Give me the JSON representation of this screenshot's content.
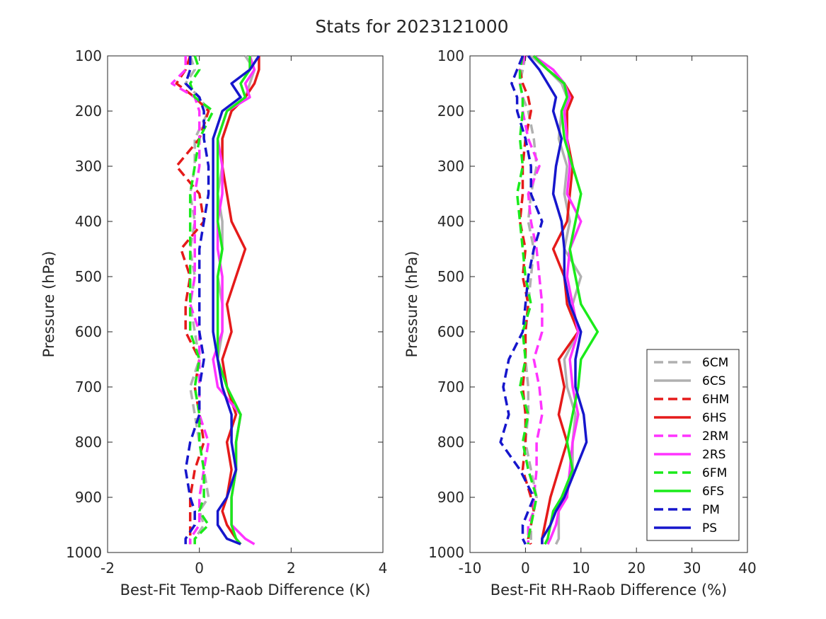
{
  "figure": {
    "title": "Stats for 2023121000"
  },
  "colors": {
    "6C": "#b0b0b0",
    "6H": "#e51a1a",
    "2R": "#ff33ff",
    "6F": "#1aeb1a",
    "P": "#1616cc"
  },
  "legend": {
    "placement": "bottom-right of right panel",
    "entries": [
      {
        "label": "6CM",
        "color": "#b0b0b0",
        "dashed": true
      },
      {
        "label": "6CS",
        "color": "#b0b0b0",
        "dashed": false
      },
      {
        "label": "6HM",
        "color": "#e51a1a",
        "dashed": true
      },
      {
        "label": "6HS",
        "color": "#e51a1a",
        "dashed": false
      },
      {
        "label": "2RM",
        "color": "#ff33ff",
        "dashed": true
      },
      {
        "label": "2RS",
        "color": "#ff33ff",
        "dashed": false
      },
      {
        "label": "6FM",
        "color": "#1aeb1a",
        "dashed": true
      },
      {
        "label": "6FS",
        "color": "#1aeb1a",
        "dashed": false
      },
      {
        "label": "PM",
        "color": "#1616cc",
        "dashed": true
      },
      {
        "label": "PS",
        "color": "#1616cc",
        "dashed": false
      }
    ]
  },
  "chart_data": [
    {
      "type": "line",
      "xlabel": "Best-Fit Temp-Raob Difference (K)",
      "ylabel": "Pressure (hPa)",
      "xlim": [
        -2,
        4
      ],
      "ylim": [
        100,
        1000
      ],
      "y_reversed": true,
      "xticks": [
        "-2",
        "0",
        "2",
        "4"
      ],
      "yticks": [
        "100",
        "200",
        "300",
        "400",
        "500",
        "600",
        "700",
        "800",
        "900",
        "1000"
      ],
      "grid": false,
      "pressure": [
        100,
        125,
        150,
        175,
        200,
        250,
        300,
        350,
        400,
        450,
        500,
        550,
        600,
        650,
        700,
        750,
        800,
        850,
        900,
        925,
        950,
        975,
        985
      ],
      "series": [
        {
          "name": "6CM",
          "values": [
            -0.2,
            -0.1,
            -0.3,
            0.0,
            0.2,
            -0.1,
            -0.1,
            -0.2,
            -0.1,
            -0.2,
            -0.1,
            -0.2,
            -0.1,
            0.0,
            -0.2,
            -0.1,
            0.0,
            0.1,
            0.2,
            0.0,
            0.1,
            -0.1,
            -0.1
          ]
        },
        {
          "name": "6CS",
          "values": [
            1.0,
            1.2,
            1.1,
            1.0,
            0.7,
            0.5,
            0.5,
            0.4,
            0.5,
            0.5,
            0.4,
            0.5,
            0.5,
            0.4,
            0.6,
            0.9,
            0.8,
            0.8,
            0.7,
            0.7,
            0.7,
            0.8,
            0.9
          ]
        },
        {
          "name": "6HM",
          "values": [
            -0.2,
            -0.3,
            -0.5,
            -0.1,
            0.2,
            0.0,
            -0.5,
            0.0,
            0.1,
            -0.4,
            -0.2,
            -0.3,
            -0.3,
            0.0,
            -0.1,
            0.0,
            0.1,
            -0.1,
            -0.2,
            -0.2,
            -0.2,
            -0.2,
            -0.2
          ]
        },
        {
          "name": "6HS",
          "values": [
            1.3,
            1.3,
            1.2,
            1.0,
            0.7,
            0.5,
            0.5,
            0.6,
            0.7,
            1.0,
            0.8,
            0.6,
            0.7,
            0.5,
            0.6,
            0.8,
            0.6,
            0.7,
            0.6,
            0.5,
            0.6,
            0.8,
            0.9
          ]
        },
        {
          "name": "2RM",
          "values": [
            -0.3,
            -0.3,
            -0.6,
            -0.1,
            0.0,
            0.0,
            0.0,
            -0.1,
            -0.1,
            -0.1,
            -0.1,
            -0.2,
            0.0,
            0.0,
            0.0,
            0.0,
            0.2,
            0.1,
            0.0,
            0.0,
            0.0,
            -0.2,
            -0.2
          ]
        },
        {
          "name": "2RS",
          "values": [
            1.1,
            1.2,
            1.0,
            1.1,
            0.6,
            0.4,
            0.5,
            0.5,
            0.4,
            0.4,
            0.5,
            0.5,
            0.5,
            0.3,
            0.4,
            0.9,
            0.8,
            0.8,
            0.7,
            0.7,
            0.7,
            1.0,
            1.2
          ]
        },
        {
          "name": "6FM",
          "values": [
            -0.1,
            0.0,
            -0.2,
            -0.1,
            0.3,
            0.0,
            -0.1,
            -0.2,
            -0.2,
            -0.2,
            -0.2,
            -0.2,
            -0.2,
            0.0,
            -0.1,
            0.0,
            0.0,
            0.1,
            0.1,
            0.0,
            0.2,
            -0.1,
            -0.1
          ]
        },
        {
          "name": "6FS",
          "values": [
            1.1,
            1.1,
            0.9,
            1.0,
            0.6,
            0.4,
            0.4,
            0.4,
            0.4,
            0.5,
            0.4,
            0.4,
            0.4,
            0.4,
            0.6,
            0.9,
            0.8,
            0.8,
            0.7,
            0.7,
            0.7,
            0.8,
            0.9
          ]
        },
        {
          "name": "PM",
          "values": [
            -0.2,
            -0.2,
            -0.3,
            0.0,
            0.1,
            0.1,
            0.2,
            0.2,
            0.1,
            0.0,
            0.0,
            0.0,
            0.0,
            0.1,
            0.0,
            0.0,
            -0.2,
            -0.3,
            -0.2,
            -0.1,
            -0.1,
            -0.3,
            -0.3
          ]
        },
        {
          "name": "PS",
          "values": [
            1.3,
            1.1,
            0.7,
            0.9,
            0.5,
            0.3,
            0.3,
            0.3,
            0.3,
            0.3,
            0.3,
            0.3,
            0.3,
            0.4,
            0.5,
            0.7,
            0.7,
            0.8,
            0.6,
            0.4,
            0.4,
            0.6,
            0.9
          ]
        }
      ]
    },
    {
      "type": "line",
      "xlabel": "Best-Fit RH-Raob Difference (%)",
      "ylabel": "Pressure (hPa)",
      "xlim": [
        -10,
        40
      ],
      "ylim": [
        100,
        1000
      ],
      "y_reversed": true,
      "xticks": [
        "-10",
        "0",
        "10",
        "20",
        "30",
        "40"
      ],
      "yticks": [
        "100",
        "200",
        "300",
        "400",
        "500",
        "600",
        "700",
        "800",
        "900",
        "1000"
      ],
      "grid": false,
      "pressure": [
        100,
        125,
        150,
        175,
        200,
        250,
        300,
        350,
        400,
        450,
        500,
        550,
        600,
        650,
        700,
        750,
        800,
        850,
        900,
        925,
        950,
        975,
        985
      ],
      "series": [
        {
          "name": "6CM",
          "values": [
            0.0,
            -0.5,
            -1.0,
            -0.5,
            0.5,
            1.5,
            2.0,
            1.0,
            0.5,
            1.5,
            1.0,
            0.5,
            0.0,
            0.0,
            0.5,
            0.5,
            0.0,
            1.0,
            2.0,
            1.5,
            1.0,
            1.0,
            1.0
          ]
        },
        {
          "name": "6CS",
          "values": [
            1.0,
            4.0,
            6.5,
            7.5,
            6.5,
            6.0,
            7.5,
            7.0,
            8.0,
            7.0,
            10.0,
            8.5,
            9.5,
            7.0,
            7.5,
            9.0,
            8.5,
            8.5,
            7.0,
            6.0,
            6.0,
            6.0,
            5.5
          ]
        },
        {
          "name": "6HM",
          "values": [
            0.0,
            -1.0,
            -0.5,
            0.5,
            1.0,
            0.0,
            -0.5,
            -0.5,
            -1.0,
            0.0,
            -0.5,
            0.5,
            0.0,
            0.0,
            -0.5,
            0.0,
            0.0,
            -0.5,
            1.0,
            1.5,
            1.0,
            0.5,
            1.0
          ]
        },
        {
          "name": "6HS",
          "values": [
            1.5,
            4.0,
            7.0,
            8.5,
            7.5,
            7.5,
            8.5,
            8.0,
            7.5,
            5.0,
            7.0,
            7.5,
            9.5,
            6.0,
            7.0,
            6.0,
            7.5,
            6.0,
            4.5,
            4.0,
            3.5,
            3.0,
            3.0
          ]
        },
        {
          "name": "2RM",
          "values": [
            0.0,
            -1.0,
            -1.0,
            -0.5,
            -0.5,
            0.5,
            2.5,
            0.5,
            1.0,
            2.0,
            2.5,
            3.0,
            3.0,
            1.5,
            2.5,
            3.0,
            2.0,
            2.0,
            1.5,
            1.5,
            0.5,
            0.5,
            0.5
          ]
        },
        {
          "name": "2RS",
          "values": [
            1.5,
            5.0,
            7.0,
            8.0,
            7.0,
            7.5,
            8.0,
            7.5,
            10.0,
            8.0,
            7.5,
            8.5,
            9.5,
            8.0,
            8.5,
            9.5,
            8.5,
            8.0,
            7.5,
            6.0,
            5.5,
            4.5,
            4.0
          ]
        },
        {
          "name": "6FM",
          "values": [
            -0.5,
            -1.0,
            -1.0,
            -0.5,
            -0.5,
            -1.0,
            -0.5,
            -1.5,
            -1.0,
            -0.5,
            0.0,
            1.0,
            -0.5,
            0.0,
            -1.0,
            0.5,
            -0.5,
            0.5,
            2.0,
            1.5,
            1.0,
            0.5,
            0.5
          ]
        },
        {
          "name": "6FS",
          "values": [
            1.5,
            4.0,
            7.0,
            7.5,
            6.5,
            7.0,
            8.5,
            10.0,
            9.0,
            8.0,
            9.0,
            10.0,
            13.0,
            10.0,
            9.5,
            8.5,
            7.5,
            8.5,
            6.5,
            5.0,
            4.5,
            4.0,
            3.5
          ]
        },
        {
          "name": "PM",
          "values": [
            -0.5,
            -1.5,
            -2.5,
            -1.5,
            -1.5,
            0.0,
            1.0,
            1.0,
            3.0,
            1.5,
            0.5,
            0.0,
            -0.5,
            -3.0,
            -4.0,
            -3.0,
            -4.5,
            -1.0,
            1.5,
            0.5,
            -0.5,
            -0.5,
            0.0
          ]
        },
        {
          "name": "PS",
          "values": [
            0.5,
            2.5,
            4.0,
            5.5,
            5.0,
            6.5,
            5.5,
            5.0,
            6.5,
            7.0,
            7.0,
            8.0,
            10.0,
            9.0,
            9.0,
            10.5,
            11.0,
            9.0,
            7.0,
            5.5,
            4.5,
            3.0,
            3.0
          ]
        }
      ]
    }
  ]
}
